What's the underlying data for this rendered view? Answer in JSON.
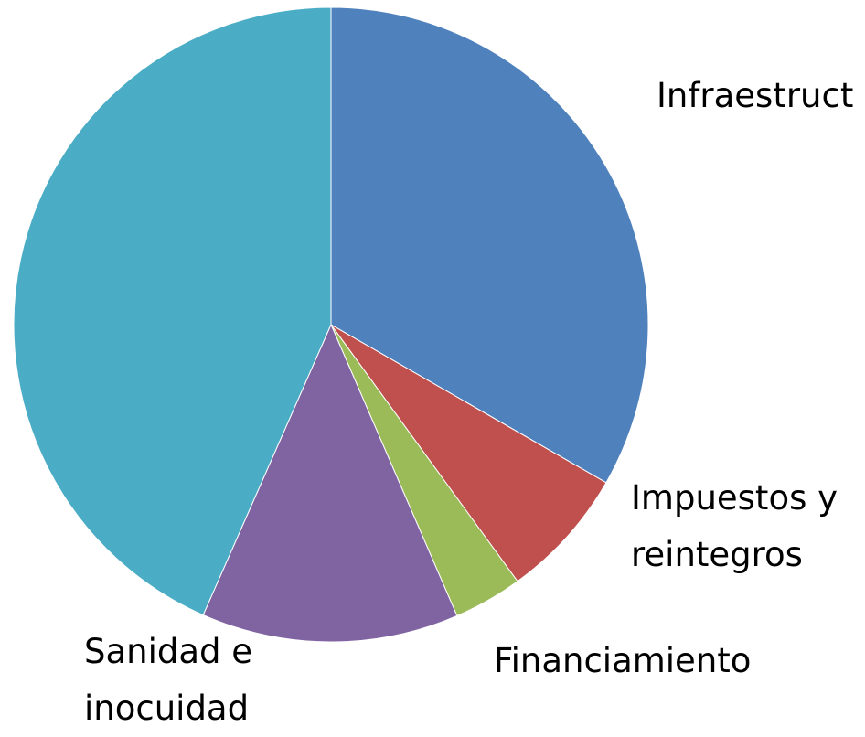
{
  "chart_data": {
    "type": "pie",
    "categories": [
      "Infraestruct",
      "Impuestos y reintegros",
      "Financiamiento",
      "Sanidad e inocuidad",
      null
    ],
    "values": [
      33.3,
      6.7,
      3.5,
      13.1,
      43.4
    ],
    "colors": [
      "#4f81bd",
      "#c0504d",
      "#9bbb59",
      "#8064a2",
      "#4bacc6"
    ]
  }
}
